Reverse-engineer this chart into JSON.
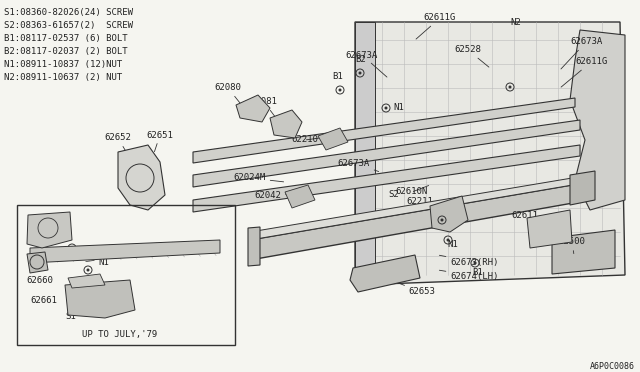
{
  "bg_color": "#f5f5f0",
  "line_color": "#333333",
  "text_color": "#222222",
  "diagram_ref": "A6P0C0086",
  "legend": [
    "S1:08360-82026(24) SCREW",
    "S2:08363-61657(2)  SCREW",
    "B1:08117-02537 (6) BOLT",
    "B2:08117-02037 (2) BOLT",
    "N1:08911-10837 (12)NUT",
    "N2:08911-10637 (2) NUT"
  ]
}
